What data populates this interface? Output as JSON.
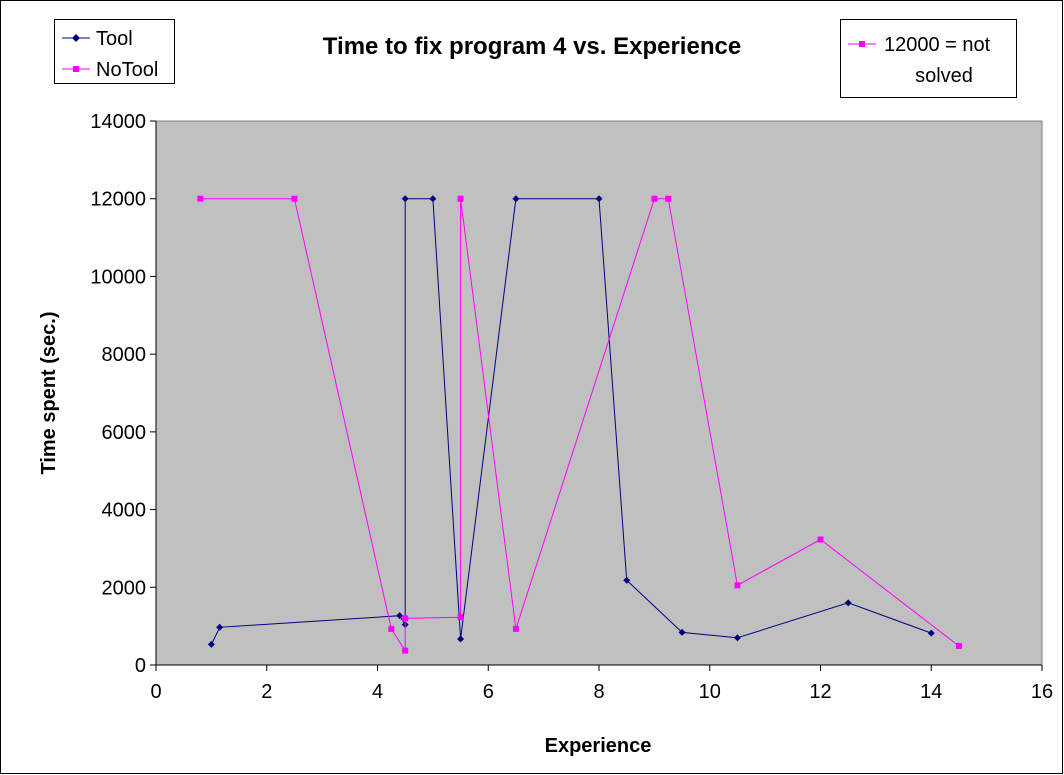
{
  "chart_data": {
    "type": "line",
    "title": "Time to fix program 4 vs. Experience",
    "xlabel": "Experience",
    "ylabel": "Time spent (sec.)",
    "xlim": [
      0,
      16
    ],
    "ylim": [
      0,
      14000
    ],
    "x_ticks": [
      0,
      2,
      4,
      6,
      8,
      10,
      12,
      14,
      16
    ],
    "y_ticks": [
      0,
      2000,
      4000,
      6000,
      8000,
      10000,
      12000,
      14000
    ],
    "x_tick_labels": [
      "0",
      "2",
      "4",
      "6",
      "8",
      "10",
      "12",
      "14",
      "16"
    ],
    "y_tick_labels": [
      "0",
      "2000",
      "4000",
      "6000",
      "8000",
      "10000",
      "12000",
      "14000"
    ],
    "plot_background": "#c0c0c0",
    "grid": false,
    "series": [
      {
        "name": "Tool",
        "color": "#000080",
        "marker": "diamond",
        "points": [
          [
            1,
            530
          ],
          [
            1.15,
            970
          ],
          [
            4.4,
            1270
          ],
          [
            4.5,
            1040
          ],
          [
            4.5,
            12000
          ],
          [
            5,
            12000
          ],
          [
            5.5,
            670
          ],
          [
            6.5,
            12000
          ],
          [
            8,
            12000
          ],
          [
            8.5,
            2180
          ],
          [
            9.5,
            840
          ],
          [
            10.5,
            700
          ],
          [
            12.5,
            1600
          ],
          [
            14,
            820
          ]
        ]
      },
      {
        "name": "NoTool",
        "color": "#ff00ff",
        "marker": "square",
        "points": [
          [
            0.8,
            12000
          ],
          [
            2.5,
            12000
          ],
          [
            4.25,
            930
          ],
          [
            4.5,
            370
          ],
          [
            4.5,
            1200
          ],
          [
            5.5,
            1230
          ],
          [
            5.5,
            12000
          ],
          [
            6.5,
            930
          ],
          [
            9,
            12000
          ],
          [
            9.25,
            12000
          ],
          [
            10.5,
            2050
          ],
          [
            12,
            3230
          ],
          [
            14.5,
            490
          ]
        ]
      }
    ],
    "legend": {
      "position": "top-left",
      "entries": [
        "Tool",
        "NoTool"
      ]
    },
    "note_box": {
      "position": "top-right",
      "lines": [
        "12000 = not",
        "solved"
      ],
      "color": "#ff00ff"
    }
  }
}
